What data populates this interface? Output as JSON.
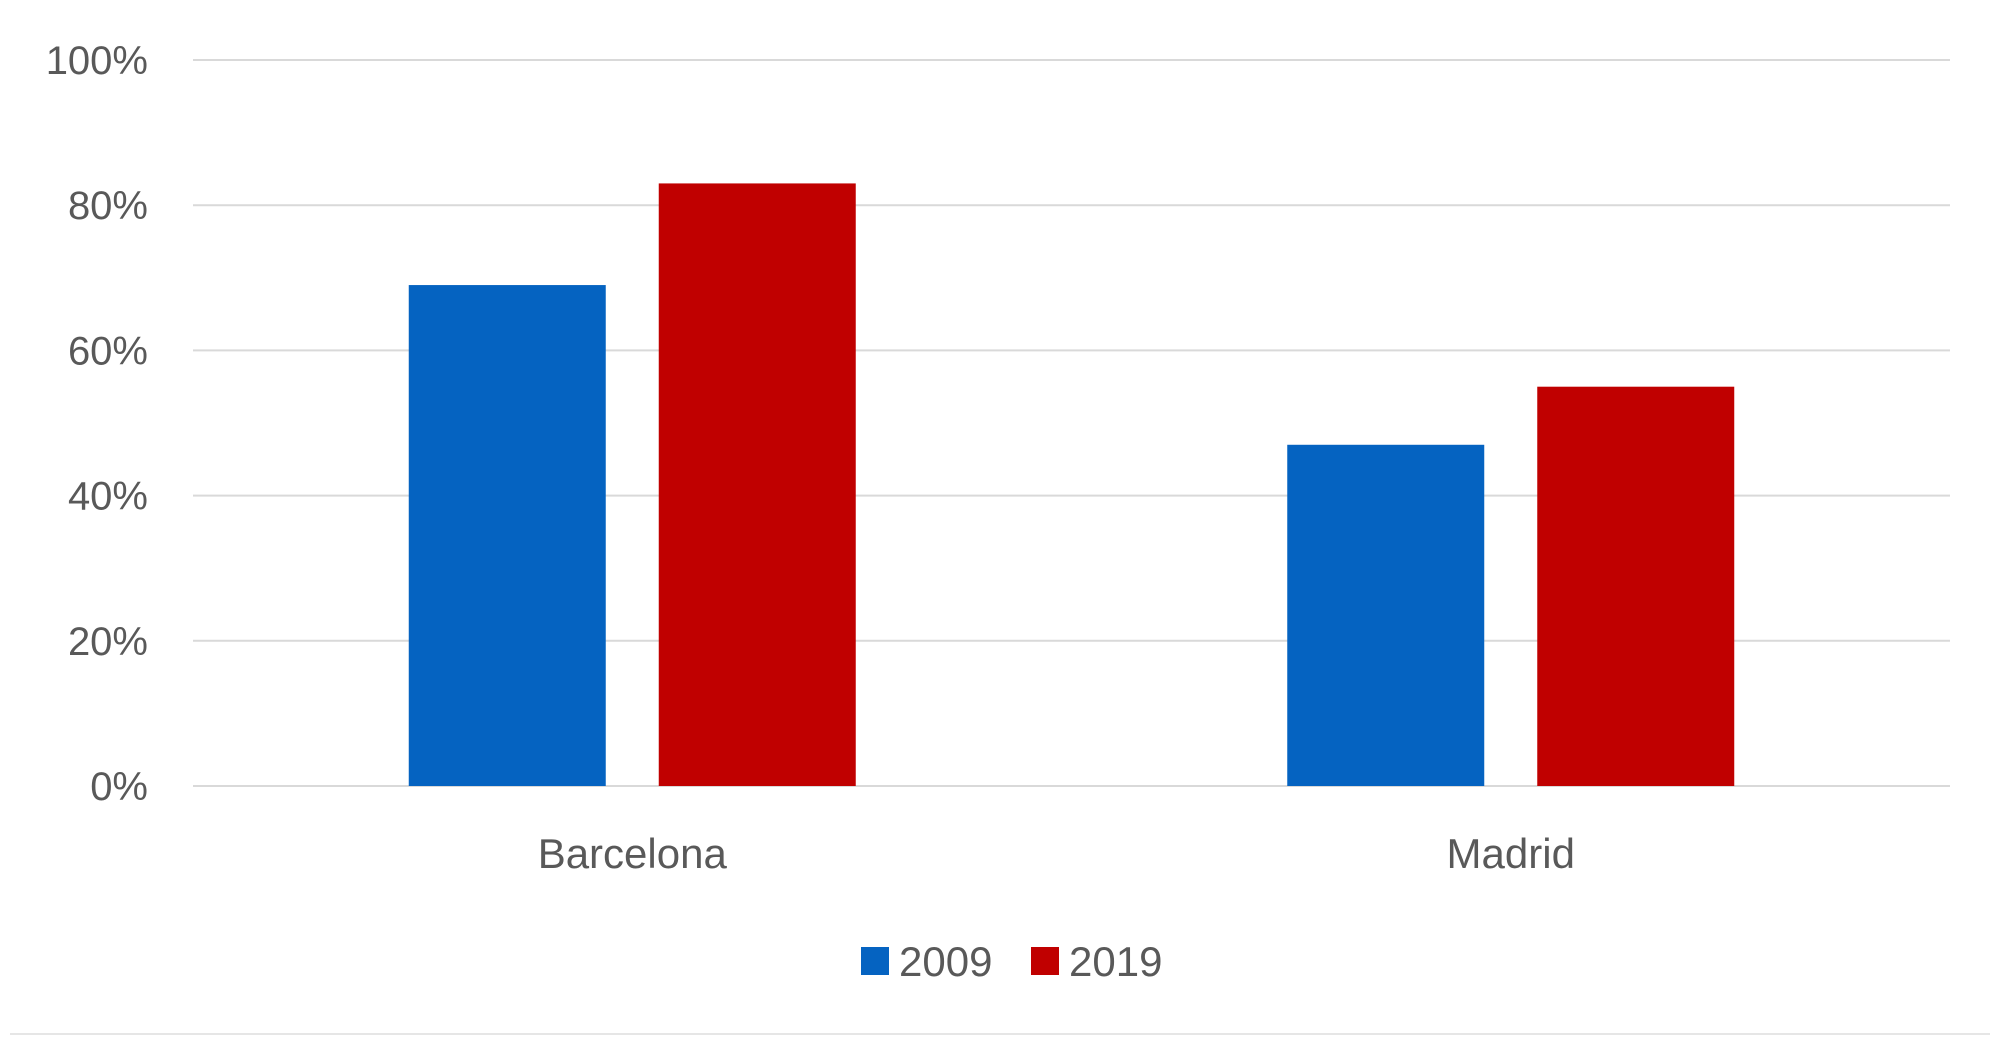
{
  "chart_data": {
    "type": "bar",
    "title": "",
    "xlabel": "",
    "ylabel": "",
    "categories": [
      "Barcelona",
      "Madrid"
    ],
    "series": [
      {
        "name": "2009",
        "values": [
          69,
          47
        ],
        "color": "#0563C1"
      },
      {
        "name": "2019",
        "values": [
          83,
          55
        ],
        "color": "#C00000"
      }
    ],
    "ylim": [
      0,
      100
    ],
    "y_ticks": [
      0,
      20,
      40,
      60,
      80,
      100
    ],
    "y_tick_labels": [
      "0%",
      "20%",
      "40%",
      "60%",
      "80%",
      "100%"
    ],
    "grid": true,
    "legend_position": "bottom",
    "colors": {
      "grid": "#D9D9D9",
      "text": "#595959",
      "background": "#FFFFFF"
    }
  }
}
